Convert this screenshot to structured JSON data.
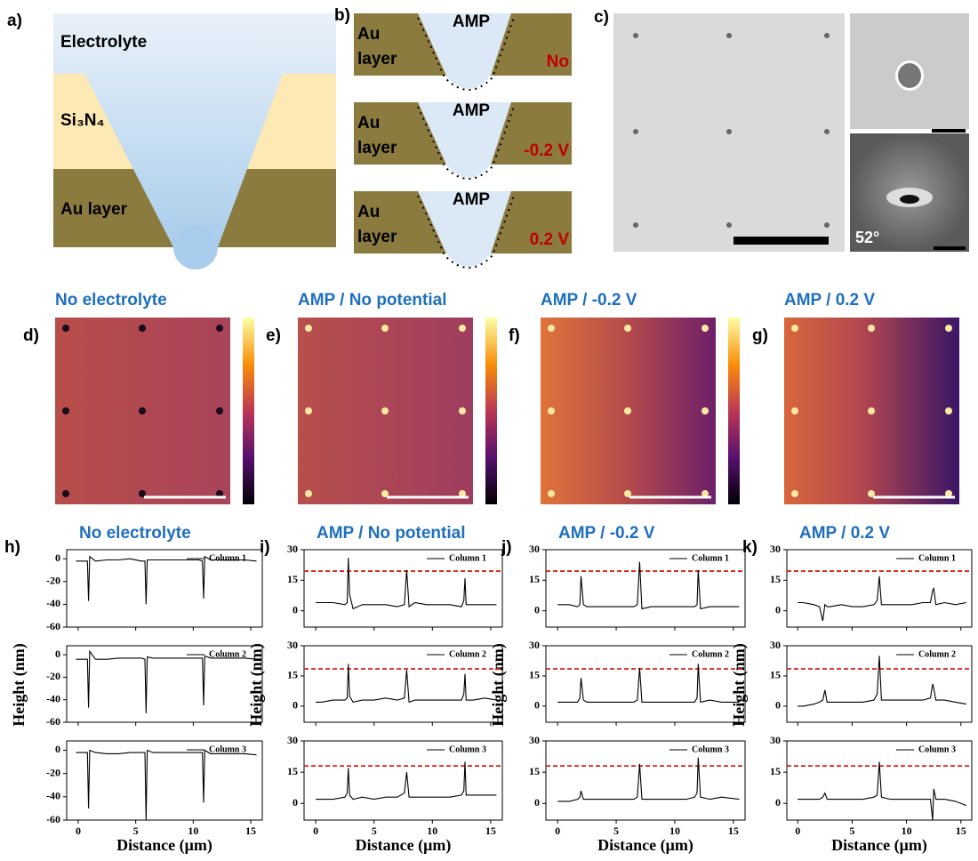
{
  "panels": {
    "a": {
      "label": "a)",
      "electrolyte": "Electrolyte",
      "si3n4": "Si₃N₄",
      "au": "Au layer"
    },
    "b": {
      "label": "b)",
      "rows": [
        {
          "amp": "AMP",
          "au": "Au",
          "layer": "layer",
          "state": "No"
        },
        {
          "amp": "AMP",
          "au": "Au",
          "layer": "layer",
          "state": "-0.2 V"
        },
        {
          "amp": "AMP",
          "au": "Au",
          "layer": "layer",
          "state": "0.2 V"
        }
      ]
    },
    "c": {
      "label": "c)",
      "tilt": "52°"
    },
    "maps": [
      {
        "label": "d)",
        "title": "No electrolyte"
      },
      {
        "label": "e)",
        "title": "AMP / No potential"
      },
      {
        "label": "f)",
        "title": "AMP / -0.2 V"
      },
      {
        "label": "g)",
        "title": "AMP / 0.2 V"
      }
    ],
    "profiles": [
      {
        "label": "h)",
        "title": "No electrolyte",
        "ylabel": "Height (nm)",
        "xlabel": "Distance (μm)"
      },
      {
        "label": "i)",
        "title": "AMP / No potential",
        "ylabel": "Height (nm)",
        "xlabel": "Distance (μm)"
      },
      {
        "label": "j)",
        "title": "AMP / -0.2 V",
        "ylabel": "Height (nm)",
        "xlabel": "Distance (μm)"
      },
      {
        "label": "k)",
        "title": "AMP / 0.2 V",
        "ylabel": "Height (nm)",
        "xlabel": "Distance (μm)"
      }
    ]
  },
  "chart_data": [
    {
      "type": "line",
      "x": [
        -0.2,
        0.5,
        0.8,
        0.9,
        1.0,
        1.5,
        2.5,
        3.5,
        4.5,
        5.5,
        5.8,
        5.9,
        6.0,
        6.5,
        7.5,
        8.5,
        9.5,
        10.5,
        10.8,
        10.9,
        11.0,
        11.5,
        12.5,
        13.5,
        14.5,
        15.5
      ],
      "series": [
        {
          "name": "Column 1",
          "color": "#000000",
          "values": [
            -2,
            -2,
            -2,
            -37,
            2,
            -2,
            -1,
            -1,
            0,
            -2,
            -2,
            -40,
            -1,
            -1,
            -1,
            -1,
            -1,
            -1,
            -2,
            -35,
            2,
            -1,
            -1,
            -1,
            -1,
            -2
          ]
        }
      ],
      "xlim": [
        -1,
        16
      ],
      "ylim": [
        -60,
        8
      ],
      "xticks": [
        0,
        5,
        10,
        15
      ],
      "yticks": [
        -60,
        -40,
        -20,
        0
      ]
    },
    {
      "type": "line",
      "x": [
        -0.2,
        0.5,
        0.8,
        0.9,
        1.0,
        1.5,
        2.5,
        3.5,
        4.5,
        5.5,
        5.8,
        5.9,
        6.0,
        6.5,
        7.5,
        8.5,
        9.5,
        10.5,
        10.8,
        10.9,
        11.0,
        11.5,
        12.5,
        13.5,
        14.5,
        15.5
      ],
      "series": [
        {
          "name": "Column 2",
          "color": "#000000",
          "values": [
            -4,
            -4,
            -4,
            -47,
            3,
            -4,
            -4,
            -3,
            -3,
            -3,
            -4,
            -52,
            -2,
            -3,
            -3,
            -3,
            -3,
            -3,
            -3,
            -45,
            -1,
            -3,
            -3,
            -3,
            -3,
            -4
          ]
        }
      ],
      "xlim": [
        -1,
        16
      ],
      "ylim": [
        -60,
        8
      ],
      "xticks": [
        0,
        5,
        10,
        15
      ],
      "yticks": [
        -60,
        -40,
        -20,
        0
      ]
    },
    {
      "type": "line",
      "x": [
        -0.2,
        0.5,
        0.8,
        0.9,
        1.0,
        1.5,
        2.5,
        3.5,
        4.5,
        5.5,
        5.8,
        5.9,
        6.0,
        6.5,
        7.5,
        8.5,
        9.5,
        10.5,
        10.8,
        10.9,
        11.0,
        11.5,
        12.5,
        13.5,
        14.5,
        15.5
      ],
      "series": [
        {
          "name": "Column 3",
          "color": "#000000",
          "values": [
            -2,
            -2,
            -2,
            -50,
            0,
            -2,
            -3,
            -3,
            -2,
            -2,
            -2,
            -60,
            0,
            -2,
            -2,
            -2,
            -2,
            -2,
            -2,
            -45,
            0,
            -3,
            -3,
            -3,
            -3,
            -4
          ]
        }
      ],
      "xlim": [
        -1,
        16
      ],
      "ylim": [
        -60,
        8
      ],
      "xticks": [
        0,
        5,
        10,
        15
      ],
      "yticks": [
        -60,
        -40,
        -20,
        0
      ]
    },
    {
      "type": "line",
      "x": [
        0,
        0.5,
        1.5,
        2.5,
        2.7,
        2.8,
        2.9,
        3.2,
        4,
        5,
        6,
        7,
        7.6,
        7.8,
        8.0,
        8.5,
        9.5,
        10.5,
        11.5,
        12.5,
        12.7,
        12.8,
        12.9,
        13.5,
        14.5,
        15.5
      ],
      "series": [
        {
          "name": "Column 1",
          "color": "#000000",
          "values": [
            4,
            4,
            4,
            3,
            4,
            26,
            8,
            1,
            3,
            3,
            3,
            2,
            3,
            20,
            2,
            4,
            3,
            3,
            3,
            2,
            5,
            16,
            3,
            3,
            3,
            3
          ]
        }
      ],
      "reference_y": 19.5,
      "xlim": [
        -1,
        16
      ],
      "ylim": [
        -8,
        30
      ],
      "xticks": [
        0,
        5,
        10,
        15
      ],
      "yticks": [
        0,
        15,
        30
      ]
    },
    {
      "type": "line",
      "x": [
        0,
        0.5,
        1.5,
        2.5,
        2.7,
        2.8,
        2.9,
        3.2,
        4,
        5,
        6,
        7,
        7.6,
        7.8,
        8.0,
        8.5,
        9.5,
        10.5,
        11.5,
        12.5,
        12.7,
        12.8,
        12.9,
        13.5,
        14.5,
        15.5
      ],
      "series": [
        {
          "name": "Column 2",
          "color": "#000000",
          "values": [
            2,
            2,
            3,
            3,
            4,
            21,
            5,
            2,
            3,
            3,
            4,
            3,
            4,
            18,
            2,
            3,
            3,
            3,
            3,
            3,
            6,
            16,
            3,
            3,
            4,
            3
          ]
        }
      ],
      "reference_y": 18.5,
      "xlim": [
        -1,
        16
      ],
      "ylim": [
        -8,
        30
      ],
      "xticks": [
        0,
        5,
        10,
        15
      ],
      "yticks": [
        0,
        15,
        30
      ]
    },
    {
      "type": "line",
      "x": [
        0,
        0.5,
        1.5,
        2.5,
        2.7,
        2.8,
        2.9,
        3.2,
        4,
        5,
        6,
        7,
        7.6,
        7.8,
        8.0,
        8.5,
        9.5,
        10.5,
        11.5,
        12.5,
        12.7,
        12.8,
        12.9,
        13.5,
        14.5,
        15.5
      ],
      "series": [
        {
          "name": "Column 3",
          "color": "#000000",
          "values": [
            2,
            2,
            2,
            3,
            5,
            17,
            4,
            2,
            3,
            2,
            3,
            3,
            5,
            15,
            3,
            3,
            3,
            3,
            3,
            4,
            6,
            20,
            4,
            4,
            4,
            4
          ]
        }
      ],
      "reference_y": 18,
      "xlim": [
        -1,
        16
      ],
      "ylim": [
        -8,
        30
      ],
      "xticks": [
        0,
        5,
        10,
        15
      ],
      "yticks": [
        0,
        15,
        30
      ]
    },
    {
      "type": "line",
      "x": [
        0,
        0.5,
        1.0,
        1.7,
        1.9,
        2.0,
        2.2,
        2.5,
        3.5,
        4.5,
        5.5,
        6.5,
        6.8,
        7.0,
        7.2,
        8,
        9,
        10,
        11,
        11.7,
        11.9,
        12.0,
        12.2,
        13,
        14,
        15.5
      ],
      "series": [
        {
          "name": "Column 1",
          "color": "#000000",
          "values": [
            3,
            3,
            3,
            2,
            3,
            17,
            3,
            2,
            2,
            2,
            2,
            2,
            3,
            24,
            1,
            2,
            2,
            2,
            2,
            2,
            3,
            20,
            1,
            2,
            2,
            2
          ]
        }
      ],
      "reference_y": 19.5,
      "xlim": [
        -1,
        16
      ],
      "ylim": [
        -8,
        30
      ],
      "xticks": [
        0,
        5,
        10,
        15
      ],
      "yticks": [
        0,
        15,
        30
      ]
    },
    {
      "type": "line",
      "x": [
        0,
        0.5,
        1.0,
        1.7,
        1.9,
        2.0,
        2.2,
        2.5,
        3.5,
        4.5,
        5.5,
        6.5,
        6.8,
        7.0,
        7.2,
        8,
        9,
        10,
        11,
        11.7,
        11.9,
        12.0,
        12.2,
        13,
        14,
        15.5
      ],
      "series": [
        {
          "name": "Column 2",
          "color": "#000000",
          "values": [
            2,
            2,
            2,
            2,
            4,
            14,
            3,
            2,
            2,
            2,
            2,
            2,
            3,
            19,
            2,
            2,
            2,
            2,
            2,
            2,
            4,
            21,
            2,
            3,
            2,
            2
          ]
        }
      ],
      "reference_y": 18.5,
      "xlim": [
        -1,
        16
      ],
      "ylim": [
        -8,
        30
      ],
      "xticks": [
        0,
        5,
        10,
        15
      ],
      "yticks": [
        0,
        15,
        30
      ]
    },
    {
      "type": "line",
      "x": [
        0,
        0.5,
        1.0,
        1.7,
        1.9,
        2.0,
        2.2,
        2.5,
        3.5,
        4.5,
        5.5,
        6.5,
        6.8,
        7.0,
        7.2,
        8,
        9,
        10,
        11,
        11.7,
        11.9,
        12.0,
        12.2,
        13,
        14,
        15.5
      ],
      "series": [
        {
          "name": "Column 3",
          "color": "#000000",
          "values": [
            1,
            1,
            1,
            2,
            3,
            6,
            2,
            2,
            2,
            2,
            2,
            2,
            3,
            19,
            2,
            2,
            2,
            2,
            2,
            3,
            5,
            22,
            3,
            2,
            3,
            2
          ]
        }
      ],
      "reference_y": 18,
      "xlim": [
        -1,
        16
      ],
      "ylim": [
        -8,
        30
      ],
      "xticks": [
        0,
        5,
        10,
        15
      ],
      "yticks": [
        0,
        15,
        30
      ]
    },
    {
      "type": "line",
      "x": [
        0,
        0.5,
        1.5,
        2.0,
        2.3,
        2.5,
        2.7,
        3,
        4,
        5,
        6,
        7,
        7.3,
        7.5,
        7.7,
        8.5,
        9.5,
        10.5,
        11.5,
        12.2,
        12.4,
        12.5,
        12.7,
        13.5,
        14.5,
        15.5
      ],
      "series": [
        {
          "name": "Column 1",
          "color": "#000000",
          "values": [
            4,
            4,
            3,
            2,
            -5,
            3,
            2,
            2,
            3,
            2,
            2,
            3,
            5,
            17,
            3,
            3,
            3,
            3,
            4,
            4,
            10,
            11,
            3,
            4,
            3,
            4
          ]
        }
      ],
      "reference_y": 19.5,
      "xlim": [
        -1,
        16
      ],
      "ylim": [
        -8,
        30
      ],
      "xticks": [
        0,
        5,
        10,
        15
      ],
      "yticks": [
        0,
        15,
        30
      ]
    },
    {
      "type": "line",
      "x": [
        0,
        0.5,
        1.5,
        2.0,
        2.3,
        2.5,
        2.7,
        3,
        4,
        5,
        6,
        7,
        7.3,
        7.5,
        7.7,
        8.5,
        9.5,
        10.5,
        11.5,
        12.2,
        12.4,
        12.5,
        12.7,
        13.5,
        14.5,
        15.5
      ],
      "series": [
        {
          "name": "Column 2",
          "color": "#000000",
          "values": [
            0,
            0,
            1,
            2,
            3,
            8,
            2,
            2,
            2,
            2,
            2,
            3,
            6,
            25,
            3,
            3,
            3,
            3,
            3,
            4,
            11,
            9,
            3,
            3,
            2,
            1
          ]
        }
      ],
      "reference_y": 18.5,
      "xlim": [
        -1,
        16
      ],
      "ylim": [
        -8,
        30
      ],
      "xticks": [
        0,
        5,
        10,
        15
      ],
      "yticks": [
        0,
        15,
        30
      ]
    },
    {
      "type": "line",
      "x": [
        0,
        0.5,
        1.5,
        2.0,
        2.3,
        2.5,
        2.7,
        3,
        4,
        5,
        6,
        7,
        7.3,
        7.5,
        7.7,
        8.5,
        9.5,
        10.5,
        11.5,
        12.2,
        12.4,
        12.5,
        12.7,
        13.5,
        14.5,
        15.5
      ],
      "series": [
        {
          "name": "Column 3",
          "color": "#000000",
          "values": [
            2,
            2,
            2,
            2,
            3,
            5,
            2,
            2,
            2,
            2,
            2,
            3,
            4,
            20,
            3,
            2,
            2,
            2,
            2,
            2,
            -8,
            7,
            2,
            2,
            1,
            -1
          ]
        }
      ],
      "reference_y": 18,
      "xlim": [
        -1,
        16
      ],
      "ylim": [
        -8,
        30
      ],
      "xticks": [
        0,
        5,
        10,
        15
      ],
      "yticks": [
        0,
        15,
        30
      ]
    }
  ]
}
